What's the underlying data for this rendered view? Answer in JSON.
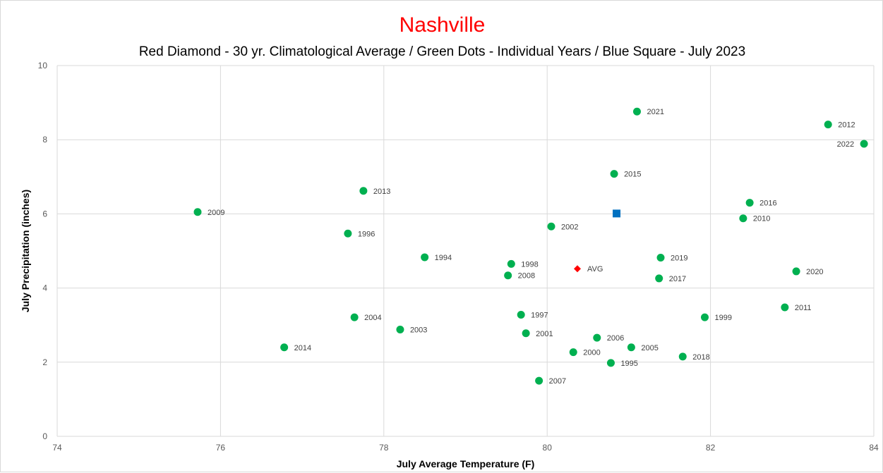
{
  "chart_data": {
    "type": "scatter",
    "title": "Nashville",
    "subtitle": "Red Diamond - 30 yr. Climatological Average / Green Dots - Individual Years / Blue Square - July 2023",
    "xlabel": "July Average Temperature (F)",
    "ylabel": "July Precipitation (inches)",
    "xlim": [
      74,
      84
    ],
    "ylim": [
      0,
      10
    ],
    "xticks": [
      74,
      76,
      78,
      80,
      82,
      84
    ],
    "yticks": [
      0,
      2,
      4,
      6,
      8,
      10
    ],
    "grid": true,
    "colors": {
      "years": "#00b050",
      "average": "#ff0000",
      "current": "#0070c0",
      "title": "#ff0000"
    },
    "series": [
      {
        "marker": "circle",
        "points": [
          {
            "label": "2009",
            "x": 75.72,
            "y": 6.05
          },
          {
            "label": "2014",
            "x": 76.78,
            "y": 2.4
          },
          {
            "label": "1996",
            "x": 77.56,
            "y": 5.47
          },
          {
            "label": "2004",
            "x": 77.64,
            "y": 3.21
          },
          {
            "label": "2013",
            "x": 77.75,
            "y": 6.62
          },
          {
            "label": "2003",
            "x": 78.2,
            "y": 2.88
          },
          {
            "label": "1994",
            "x": 78.5,
            "y": 4.83
          },
          {
            "label": "2008",
            "x": 79.52,
            "y": 4.34
          },
          {
            "label": "1998",
            "x": 79.56,
            "y": 4.65
          },
          {
            "label": "1997",
            "x": 79.68,
            "y": 3.28
          },
          {
            "label": "2001",
            "x": 79.74,
            "y": 2.78
          },
          {
            "label": "2007",
            "x": 79.9,
            "y": 1.5
          },
          {
            "label": "2002",
            "x": 80.05,
            "y": 5.66
          },
          {
            "label": "2000",
            "x": 80.32,
            "y": 2.27
          },
          {
            "label": "2006",
            "x": 80.61,
            "y": 2.66
          },
          {
            "label": "1995",
            "x": 80.78,
            "y": 1.98
          },
          {
            "label": "2015",
            "x": 80.82,
            "y": 7.08
          },
          {
            "label": "2005",
            "x": 81.03,
            "y": 2.4
          },
          {
            "label": "2021",
            "x": 81.1,
            "y": 8.76
          },
          {
            "label": "2017",
            "x": 81.37,
            "y": 4.26
          },
          {
            "label": "2019",
            "x": 81.39,
            "y": 4.82
          },
          {
            "label": "2018",
            "x": 81.66,
            "y": 2.15
          },
          {
            "label": "1999",
            "x": 81.93,
            "y": 3.21
          },
          {
            "label": "2010",
            "x": 82.4,
            "y": 5.88
          },
          {
            "label": "2016",
            "x": 82.48,
            "y": 6.3
          },
          {
            "label": "2011",
            "x": 82.91,
            "y": 3.48
          },
          {
            "label": "2020",
            "x": 83.05,
            "y": 4.45
          },
          {
            "label": "2012",
            "x": 83.44,
            "y": 8.41
          },
          {
            "label": "2022",
            "x": 83.88,
            "y": 7.89
          }
        ]
      },
      {
        "marker": "diamond",
        "points": [
          {
            "label": "AVG",
            "x": 80.37,
            "y": 4.52
          }
        ]
      },
      {
        "marker": "square",
        "points": [
          {
            "label": "",
            "x": 80.85,
            "y": 6.01
          }
        ]
      }
    ]
  }
}
